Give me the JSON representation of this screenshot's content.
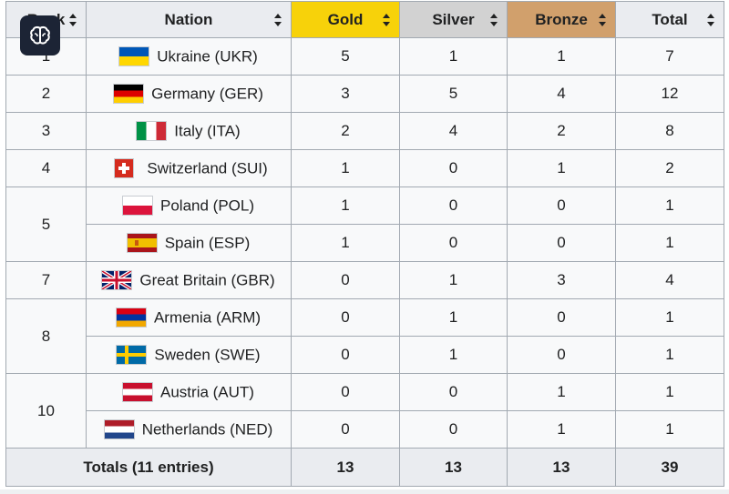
{
  "headers": {
    "rank": "Rank",
    "nation": "Nation",
    "gold": "Gold",
    "silver": "Silver",
    "bronze": "Bronze",
    "total": "Total"
  },
  "rows": [
    {
      "rank": "1",
      "nation": "Ukraine (UKR)",
      "flag": "ukraine-flag-icon",
      "gold": "5",
      "silver": "1",
      "bronze": "1",
      "total": "7"
    },
    {
      "rank": "2",
      "nation": "Germany (GER)",
      "flag": "germany-flag-icon",
      "gold": "3",
      "silver": "5",
      "bronze": "4",
      "total": "12"
    },
    {
      "rank": "3",
      "nation": "Italy (ITA)",
      "flag": "italy-flag-icon",
      "gold": "2",
      "silver": "4",
      "bronze": "2",
      "total": "8"
    },
    {
      "rank": "4",
      "nation": "Switzerland (SUI)",
      "flag": "switzerland-flag-icon",
      "gold": "1",
      "silver": "0",
      "bronze": "1",
      "total": "2"
    },
    {
      "rank": "5",
      "nation": "Poland (POL)",
      "flag": "poland-flag-icon",
      "gold": "1",
      "silver": "0",
      "bronze": "0",
      "total": "1"
    },
    {
      "rank": "",
      "nation": "Spain (ESP)",
      "flag": "spain-flag-icon",
      "gold": "1",
      "silver": "0",
      "bronze": "0",
      "total": "1"
    },
    {
      "rank": "7",
      "nation": "Great Britain (GBR)",
      "flag": "great-britain-flag-icon",
      "gold": "0",
      "silver": "1",
      "bronze": "3",
      "total": "4"
    },
    {
      "rank": "8",
      "nation": "Armenia (ARM)",
      "flag": "armenia-flag-icon",
      "gold": "0",
      "silver": "1",
      "bronze": "0",
      "total": "1"
    },
    {
      "rank": "",
      "nation": "Sweden (SWE)",
      "flag": "sweden-flag-icon",
      "gold": "0",
      "silver": "1",
      "bronze": "0",
      "total": "1"
    },
    {
      "rank": "10",
      "nation": "Austria (AUT)",
      "flag": "austria-flag-icon",
      "gold": "0",
      "silver": "0",
      "bronze": "1",
      "total": "1"
    },
    {
      "rank": "",
      "nation": "Netherlands (NED)",
      "flag": "netherlands-flag-icon",
      "gold": "0",
      "silver": "0",
      "bronze": "1",
      "total": "1"
    }
  ],
  "totals": {
    "label": "Totals (11 entries)",
    "gold": "13",
    "silver": "13",
    "bronze": "13",
    "total": "39"
  },
  "overlay_button": {
    "icon": "brain-icon"
  },
  "colors": {
    "gold_header": "#f7d20a",
    "silver_header": "#d2d2d2",
    "bronze_header": "#d1a06c",
    "header_bg": "#eaecf0",
    "cell_bg": "#f8f9fa",
    "border": "#a2a9b1"
  }
}
